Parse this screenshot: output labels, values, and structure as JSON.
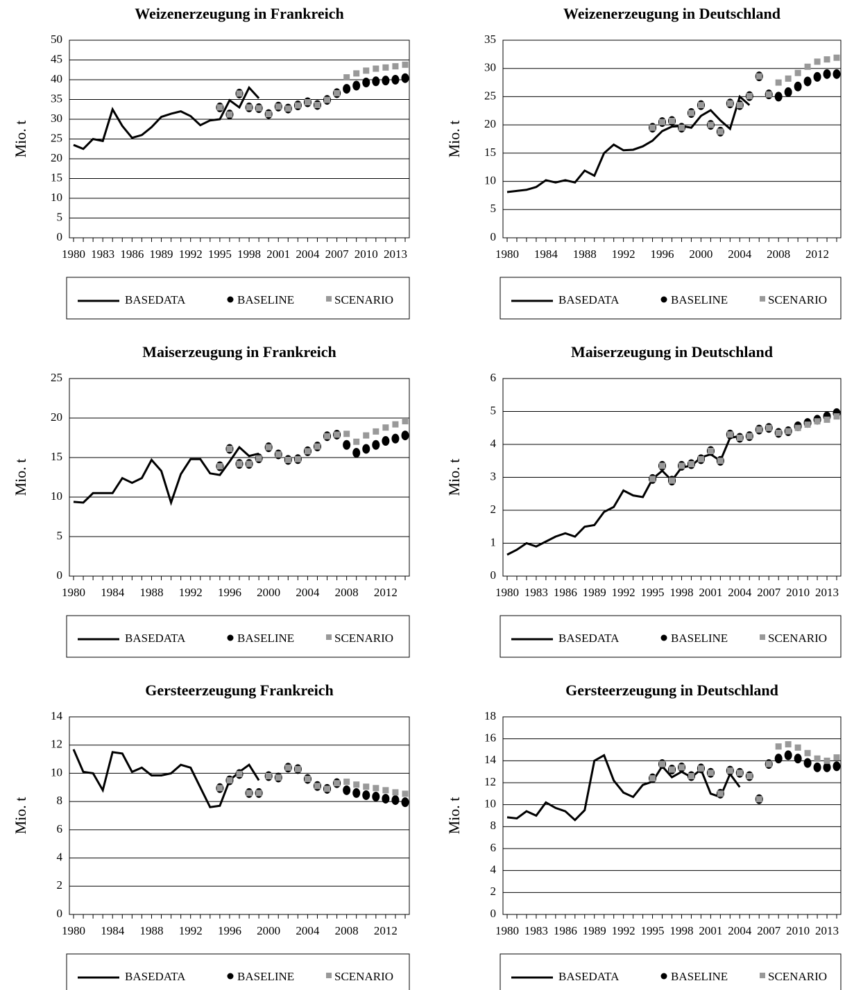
{
  "chart_data": [
    {
      "type": "line",
      "title": "Weizenerzeugung in Frankreich",
      "y_label": "Mio. t",
      "categories": [
        "1980",
        null,
        null,
        "1983",
        null,
        null,
        "1986",
        null,
        null,
        "1989",
        null,
        null,
        "1992",
        null,
        null,
        "1995",
        null,
        null,
        "1998",
        null,
        null,
        "2001",
        null,
        null,
        "2004",
        null,
        null,
        "2007",
        null,
        null,
        "2010",
        null,
        null,
        "2013",
        null
      ],
      "series": [
        {
          "name": "BASEDATA",
          "color": "#000000",
          "marker": "line",
          "values": [
            23.5,
            22.5,
            25,
            24.5,
            32.5,
            28.3,
            25.3,
            26,
            28,
            30.6,
            31.4,
            32,
            30.8,
            28.5,
            29.7,
            30,
            34.8,
            33,
            38,
            35.3,
            null,
            null,
            null,
            null,
            null,
            null,
            null,
            null,
            null,
            null,
            null,
            null,
            null,
            null,
            null
          ]
        },
        {
          "name": "BASELINE",
          "color": "#000000",
          "marker": "circle",
          "values": [
            null,
            null,
            null,
            null,
            null,
            null,
            null,
            null,
            null,
            null,
            null,
            null,
            null,
            null,
            null,
            33,
            31.2,
            36.5,
            33,
            32.8,
            31.3,
            33.2,
            32.7,
            33.5,
            34.3,
            33.6,
            34.9,
            36.6,
            37.7,
            38.5,
            39.3,
            39.6,
            39.8,
            40,
            40.4
          ]
        },
        {
          "name": "SCENARIO",
          "color": "#999999",
          "marker": "square",
          "values": [
            null,
            null,
            null,
            null,
            null,
            null,
            null,
            null,
            null,
            null,
            null,
            null,
            null,
            null,
            null,
            33,
            31.2,
            36.5,
            33,
            32.8,
            31.3,
            33.2,
            32.7,
            33.5,
            34.3,
            33.6,
            34.9,
            36.6,
            40.6,
            41.6,
            42.3,
            42.8,
            43.1,
            43.4,
            43.8
          ]
        }
      ],
      "ylim": [
        0,
        50
      ],
      "yticks": [
        0,
        5,
        10,
        15,
        20,
        25,
        30,
        35,
        40,
        45,
        50
      ],
      "grid": true
    },
    {
      "type": "line",
      "title": "Weizenerzeugung in Deutschland",
      "y_label": "Mio. t",
      "categories": [
        "1980",
        null,
        null,
        null,
        "1984",
        null,
        null,
        null,
        "1988",
        null,
        null,
        null,
        "1992",
        null,
        null,
        null,
        "1996",
        null,
        null,
        null,
        "2000",
        null,
        null,
        null,
        "2004",
        null,
        null,
        null,
        "2008",
        null,
        null,
        null,
        "2012",
        null,
        null
      ],
      "series": [
        {
          "name": "BASEDATA",
          "color": "#000000",
          "marker": "line",
          "values": [
            8.1,
            8.3,
            8.5,
            9,
            10.2,
            9.8,
            10.2,
            9.8,
            11.9,
            11,
            15,
            16.5,
            15.5,
            15.6,
            16.2,
            17.2,
            18.9,
            19.7,
            19.8,
            19.5,
            21.6,
            22.6,
            20.8,
            19.3,
            25,
            23.5,
            null,
            null,
            null,
            null,
            null,
            null,
            null,
            null,
            null
          ]
        },
        {
          "name": "BASELINE",
          "color": "#000000",
          "marker": "circle",
          "values": [
            null,
            null,
            null,
            null,
            null,
            null,
            null,
            null,
            null,
            null,
            null,
            null,
            null,
            null,
            null,
            19.5,
            20.5,
            20.7,
            19.5,
            22.1,
            23.5,
            20,
            18.8,
            23.8,
            23.5,
            25.1,
            28.6,
            25.4,
            25,
            25.8,
            26.8,
            27.7,
            28.5,
            29,
            29
          ]
        },
        {
          "name": "SCENARIO",
          "color": "#999999",
          "marker": "square",
          "values": [
            null,
            null,
            null,
            null,
            null,
            null,
            null,
            null,
            null,
            null,
            null,
            null,
            null,
            null,
            null,
            19.5,
            20.5,
            20.7,
            19.5,
            22.1,
            23.5,
            20,
            18.8,
            23.8,
            23.5,
            25.1,
            28.6,
            25.4,
            27.5,
            28.2,
            29.2,
            30.3,
            31.2,
            31.6,
            31.9
          ]
        }
      ],
      "ylim": [
        0,
        35
      ],
      "yticks": [
        0,
        5,
        10,
        15,
        20,
        25,
        30,
        35
      ],
      "grid": true
    },
    {
      "type": "line",
      "title": "Maiserzeugung in Frankreich",
      "y_label": "Mio. t",
      "categories": [
        "1980",
        null,
        null,
        null,
        "1984",
        null,
        null,
        null,
        "1988",
        null,
        null,
        null,
        "1992",
        null,
        null,
        null,
        "1996",
        null,
        null,
        null,
        "2000",
        null,
        null,
        null,
        "2004",
        null,
        null,
        null,
        "2008",
        null,
        null,
        null,
        "2012",
        null,
        null
      ],
      "series": [
        {
          "name": "BASEDATA",
          "color": "#000000",
          "marker": "line",
          "values": [
            9.4,
            9.3,
            10.5,
            10.5,
            10.5,
            12.4,
            11.8,
            12.4,
            14.7,
            13.3,
            9.3,
            12.9,
            14.8,
            14.8,
            13,
            12.8,
            14.5,
            16.3,
            15.2,
            15.5,
            null,
            null,
            null,
            null,
            null,
            null,
            null,
            null,
            null,
            null,
            null,
            null,
            null,
            null,
            null
          ]
        },
        {
          "name": "BASELINE",
          "color": "#000000",
          "marker": "circle",
          "values": [
            null,
            null,
            null,
            null,
            null,
            null,
            null,
            null,
            null,
            null,
            null,
            null,
            null,
            null,
            null,
            13.9,
            16.1,
            14.2,
            14.2,
            14.9,
            16.3,
            15.4,
            14.7,
            14.8,
            15.8,
            16.4,
            17.7,
            17.9,
            16.6,
            15.6,
            16.1,
            16.6,
            17.1,
            17.4,
            17.8
          ]
        },
        {
          "name": "SCENARIO",
          "color": "#999999",
          "marker": "square",
          "values": [
            null,
            null,
            null,
            null,
            null,
            null,
            null,
            null,
            null,
            null,
            null,
            null,
            null,
            null,
            null,
            13.9,
            16.1,
            14.2,
            14.2,
            14.9,
            16.3,
            15.4,
            14.7,
            14.8,
            15.8,
            16.4,
            17.7,
            17.9,
            18,
            17,
            17.8,
            18.3,
            18.8,
            19.2,
            19.6
          ]
        }
      ],
      "ylim": [
        0,
        25
      ],
      "yticks": [
        0,
        5,
        10,
        15,
        20,
        25
      ],
      "grid": true
    },
    {
      "type": "line",
      "title": "Maiserzeugung in Deutschland",
      "y_label": "Mio. t",
      "categories": [
        "1980",
        null,
        null,
        "1983",
        null,
        null,
        "1986",
        null,
        null,
        "1989",
        null,
        null,
        "1992",
        null,
        null,
        "1995",
        null,
        null,
        "1998",
        null,
        null,
        "2001",
        null,
        null,
        "2004",
        null,
        null,
        "2007",
        null,
        null,
        "2010",
        null,
        null,
        "2013",
        null
      ],
      "series": [
        {
          "name": "BASEDATA",
          "color": "#000000",
          "marker": "line",
          "values": [
            0.65,
            0.8,
            1.0,
            0.9,
            1.05,
            1.2,
            1.3,
            1.2,
            1.5,
            1.55,
            1.95,
            2.1,
            2.6,
            2.45,
            2.4,
            2.95,
            3.2,
            2.9,
            3.3,
            3.35,
            3.6,
            3.7,
            3.5,
            4.2,
            4.25,
            null,
            null,
            null,
            null,
            null,
            null,
            null,
            null,
            null,
            null
          ]
        },
        {
          "name": "BASELINE",
          "color": "#000000",
          "marker": "circle",
          "values": [
            null,
            null,
            null,
            null,
            null,
            null,
            null,
            null,
            null,
            null,
            null,
            null,
            null,
            null,
            null,
            2.95,
            3.35,
            2.9,
            3.35,
            3.4,
            3.55,
            3.8,
            3.5,
            4.3,
            4.2,
            4.25,
            4.45,
            4.5,
            4.35,
            4.4,
            4.55,
            4.65,
            4.75,
            4.85,
            4.95
          ]
        },
        {
          "name": "SCENARIO",
          "color": "#999999",
          "marker": "square",
          "values": [
            null,
            null,
            null,
            null,
            null,
            null,
            null,
            null,
            null,
            null,
            null,
            null,
            null,
            null,
            null,
            2.95,
            3.35,
            2.9,
            3.35,
            3.4,
            3.55,
            3.8,
            3.5,
            4.3,
            4.2,
            4.25,
            4.45,
            4.5,
            4.35,
            4.4,
            4.5,
            4.6,
            4.7,
            4.75,
            4.85
          ]
        }
      ],
      "ylim": [
        0,
        6
      ],
      "yticks": [
        0,
        1,
        2,
        3,
        4,
        5,
        6
      ],
      "grid": true
    },
    {
      "type": "line",
      "title": "Gersteerzeugung Frankreich",
      "y_label": "Mio. t",
      "categories": [
        "1980",
        null,
        null,
        null,
        "1984",
        null,
        null,
        null,
        "1988",
        null,
        null,
        null,
        "1992",
        null,
        null,
        null,
        "1996",
        null,
        null,
        null,
        "2000",
        null,
        null,
        null,
        "2004",
        null,
        null,
        null,
        "2008",
        null,
        null,
        null,
        "2012",
        null,
        null
      ],
      "series": [
        {
          "name": "BASEDATA",
          "color": "#000000",
          "marker": "line",
          "values": [
            11.7,
            10.1,
            10,
            8.8,
            11.5,
            11.4,
            10.1,
            10.4,
            9.85,
            9.85,
            10,
            10.6,
            10.4,
            9,
            7.6,
            7.7,
            9.5,
            10.1,
            10.6,
            9.5,
            null,
            null,
            null,
            null,
            null,
            null,
            null,
            null,
            null,
            null,
            null,
            null,
            null,
            null,
            null
          ]
        },
        {
          "name": "BASELINE",
          "color": "#000000",
          "marker": "circle",
          "values": [
            null,
            null,
            null,
            null,
            null,
            null,
            null,
            null,
            null,
            null,
            null,
            null,
            null,
            null,
            null,
            8.95,
            9.5,
            9.95,
            8.6,
            8.6,
            9.8,
            9.7,
            10.4,
            10.3,
            9.6,
            9.1,
            8.9,
            9.3,
            8.8,
            8.6,
            8.45,
            8.35,
            8.2,
            8.1,
            7.95
          ]
        },
        {
          "name": "SCENARIO",
          "color": "#999999",
          "marker": "square",
          "values": [
            null,
            null,
            null,
            null,
            null,
            null,
            null,
            null,
            null,
            null,
            null,
            null,
            null,
            null,
            null,
            8.95,
            9.5,
            9.95,
            8.6,
            8.6,
            9.8,
            9.7,
            10.4,
            10.3,
            9.6,
            9.1,
            8.9,
            9.3,
            9.4,
            9.2,
            9.05,
            8.95,
            8.8,
            8.65,
            8.55
          ]
        }
      ],
      "ylim": [
        0,
        14
      ],
      "yticks": [
        0,
        2,
        4,
        6,
        8,
        10,
        12,
        14
      ],
      "grid": true
    },
    {
      "type": "line",
      "title": "Gersteerzeugung in Deutschland",
      "y_label": "Mio. t",
      "categories": [
        "1980",
        null,
        null,
        "1983",
        null,
        null,
        "1986",
        null,
        null,
        "1989",
        null,
        null,
        "1992",
        null,
        null,
        "1995",
        null,
        null,
        "1998",
        null,
        null,
        "2001",
        null,
        null,
        "2004",
        null,
        null,
        "2007",
        null,
        null,
        "2010",
        null,
        null,
        "2013",
        null
      ],
      "series": [
        {
          "name": "BASEDATA",
          "color": "#000000",
          "marker": "line",
          "values": [
            8.85,
            8.75,
            9.4,
            9,
            10.2,
            9.7,
            9.4,
            8.6,
            9.5,
            14,
            14.5,
            12.2,
            11.1,
            10.7,
            11.8,
            12.1,
            13.5,
            12.5,
            13,
            12.5,
            13.2,
            11,
            10.7,
            12.8,
            11.6,
            null,
            null,
            null,
            null,
            null,
            null,
            null,
            null,
            null,
            null
          ]
        },
        {
          "name": "BASELINE",
          "color": "#000000",
          "marker": "circle",
          "values": [
            null,
            null,
            null,
            null,
            null,
            null,
            null,
            null,
            null,
            null,
            null,
            null,
            null,
            null,
            null,
            12.4,
            13.7,
            13.2,
            13.4,
            12.6,
            13.3,
            12.9,
            11,
            13.1,
            12.9,
            12.6,
            10.5,
            13.7,
            14.2,
            14.5,
            14.2,
            13.8,
            13.4,
            13.4,
            13.5
          ]
        },
        {
          "name": "SCENARIO",
          "color": "#999999",
          "marker": "square",
          "values": [
            null,
            null,
            null,
            null,
            null,
            null,
            null,
            null,
            null,
            null,
            null,
            null,
            null,
            null,
            null,
            12.4,
            13.7,
            13.2,
            13.4,
            12.6,
            13.3,
            12.9,
            11,
            13.1,
            12.9,
            12.6,
            10.5,
            13.7,
            15.3,
            15.5,
            15.2,
            14.7,
            14.2,
            14,
            14.3
          ]
        }
      ],
      "ylim": [
        0,
        18
      ],
      "yticks": [
        0,
        2,
        4,
        6,
        8,
        10,
        12,
        14,
        16,
        18
      ],
      "grid": true
    }
  ]
}
